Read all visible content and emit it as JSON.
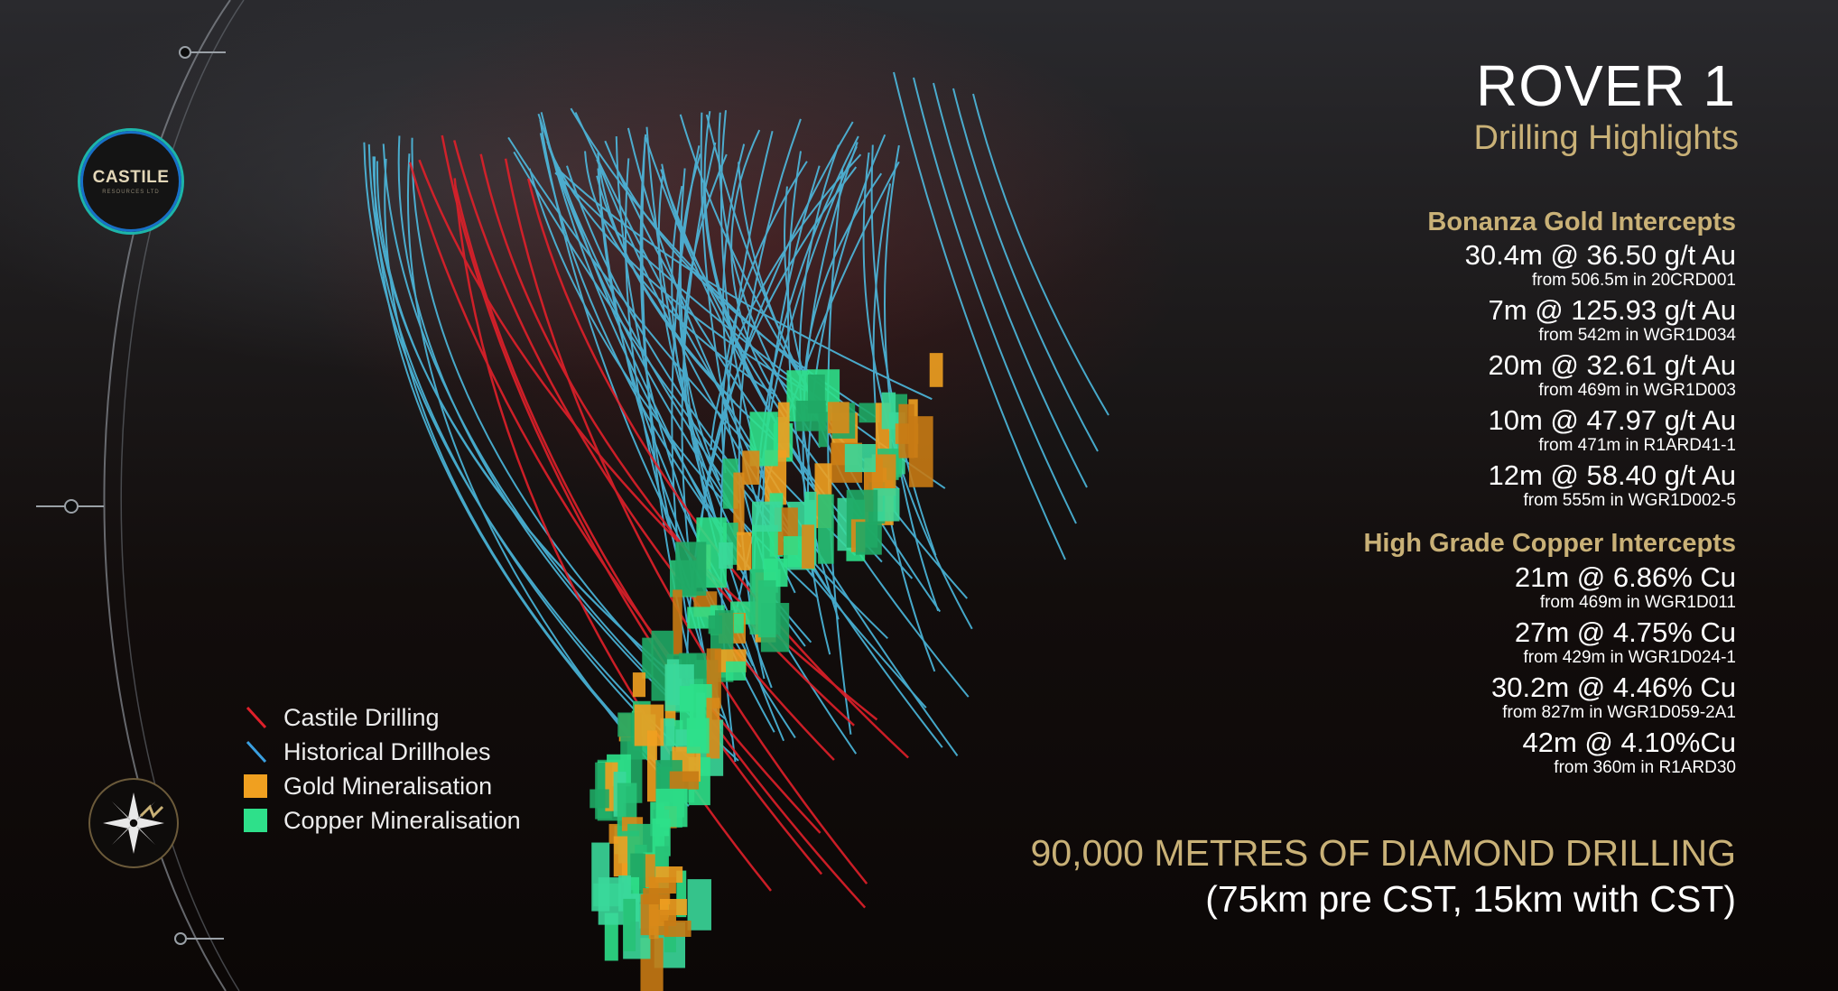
{
  "header": {
    "title": "ROVER 1",
    "subtitle": "Drilling Highlights"
  },
  "gold": {
    "heading": "Bonanza Gold Intercepts",
    "items": [
      {
        "main": "30.4m @ 36.50 g/t Au",
        "sub": "from 506.5m in 20CRD001"
      },
      {
        "main": "7m @ 125.93 g/t Au",
        "sub": "from 542m in WGR1D034"
      },
      {
        "main": "20m @ 32.61 g/t Au",
        "sub": "from 469m in WGR1D003"
      },
      {
        "main": "10m @ 47.97 g/t Au",
        "sub": "from 471m in R1ARD41-1"
      },
      {
        "main": "12m @ 58.40 g/t Au",
        "sub": "from 555m in WGR1D002-5"
      }
    ]
  },
  "copper": {
    "heading": "High Grade Copper Intercepts",
    "items": [
      {
        "main": "21m @ 6.86% Cu",
        "sub": "from 469m in WGR1D011"
      },
      {
        "main": "27m @ 4.75% Cu",
        "sub": "from 429m in WGR1D024-1"
      },
      {
        "main": "30.2m @ 4.46% Cu",
        "sub": "from 827m in WGR1D059-2A1"
      },
      {
        "main": "42m @ 4.10%Cu",
        "sub": "from 360m in R1ARD30"
      }
    ]
  },
  "footer": {
    "line1": "90,000 METRES OF DIAMOND DRILLING",
    "line2": "(75km pre CST, 15km with CST)"
  },
  "legend": {
    "castile": "Castile Drilling",
    "historical": "Historical Drillholes",
    "gold": "Gold Mineralisation",
    "copper": "Copper Mineralisation"
  },
  "logo": {
    "text": "CASTILE",
    "sub": "RESOURCES LTD"
  },
  "colors": {
    "accent_gold": "#c9b177",
    "castile_drilling": "#e0202a",
    "historical_drillholes": "#4fc3ea",
    "gold_mineralisation": "#f0a020",
    "copper_mineralisation": "#2ee08a"
  }
}
